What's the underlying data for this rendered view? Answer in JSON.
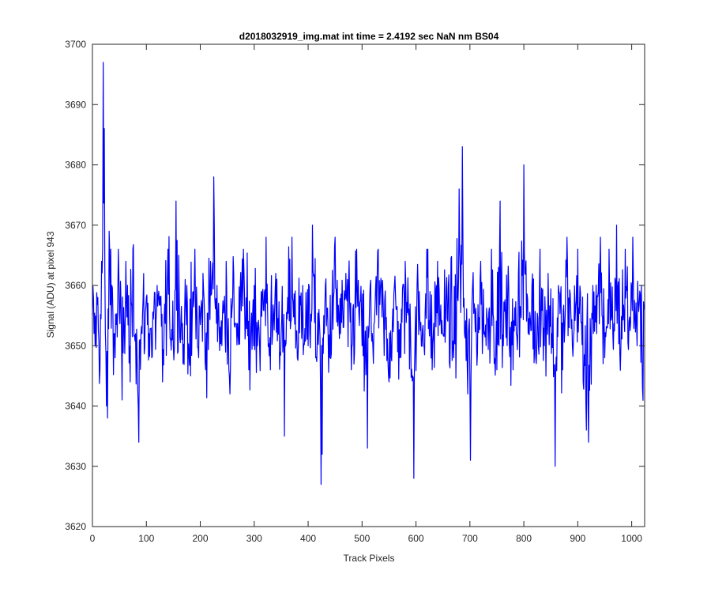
{
  "chart_data": {
    "type": "line",
    "title": "d2018032919_img.mat int time = 2.4192 sec  NaN nm BS04",
    "xlabel": "Track Pixels",
    "ylabel": "Signal (ADU) at pixel 943",
    "xlim": [
      0,
      1024
    ],
    "ylim": [
      3620,
      3700
    ],
    "xticks": [
      0,
      100,
      200,
      300,
      400,
      500,
      600,
      700,
      800,
      900,
      1000
    ],
    "yticks": [
      3620,
      3630,
      3640,
      3650,
      3660,
      3670,
      3680,
      3690,
      3700
    ],
    "grid": false,
    "series": [
      {
        "color": "#0000ff",
        "noise": {
          "n_points": 1024,
          "mean": 3654,
          "min": 3627,
          "max": 3697
        },
        "points": [
          [
            0,
            3655
          ],
          [
            5,
            3650
          ],
          [
            10,
            3658
          ],
          [
            14,
            3646
          ],
          [
            17,
            3664
          ],
          [
            20,
            3697
          ],
          [
            22,
            3686
          ],
          [
            24,
            3652
          ],
          [
            26,
            3640
          ],
          [
            28,
            3638
          ],
          [
            31,
            3669
          ],
          [
            34,
            3666
          ],
          [
            36,
            3660
          ],
          [
            42,
            3648
          ],
          [
            48,
            3666
          ],
          [
            55,
            3641
          ],
          [
            62,
            3664
          ],
          [
            70,
            3644
          ],
          [
            75,
            3666
          ],
          [
            80,
            3652
          ],
          [
            86,
            3634
          ],
          [
            92,
            3652
          ],
          [
            100,
            3658
          ],
          [
            110,
            3648
          ],
          [
            120,
            3660
          ],
          [
            130,
            3644
          ],
          [
            140,
            3666
          ],
          [
            150,
            3650
          ],
          [
            155,
            3674
          ],
          [
            160,
            3665
          ],
          [
            168,
            3647
          ],
          [
            175,
            3660
          ],
          [
            182,
            3645
          ],
          [
            190,
            3666
          ],
          [
            197,
            3648
          ],
          [
            205,
            3662
          ],
          [
            210,
            3646
          ],
          [
            219,
            3664
          ],
          [
            225,
            3678
          ],
          [
            231,
            3660
          ],
          [
            240,
            3650
          ],
          [
            248,
            3664
          ],
          [
            255,
            3642
          ],
          [
            262,
            3662
          ],
          [
            270,
            3652
          ],
          [
            280,
            3666
          ],
          [
            290,
            3646
          ],
          [
            300,
            3660
          ],
          [
            310,
            3650
          ],
          [
            322,
            3668
          ],
          [
            330,
            3646
          ],
          [
            340,
            3662
          ],
          [
            350,
            3652
          ],
          [
            356,
            3635
          ],
          [
            362,
            3658
          ],
          [
            370,
            3668
          ],
          [
            380,
            3648
          ],
          [
            390,
            3660
          ],
          [
            400,
            3650
          ],
          [
            408,
            3670
          ],
          [
            414,
            3648
          ],
          [
            420,
            3656
          ],
          [
            424,
            3627
          ],
          [
            426,
            3632
          ],
          [
            432,
            3660
          ],
          [
            440,
            3648
          ],
          [
            450,
            3668
          ],
          [
            460,
            3652
          ],
          [
            470,
            3662
          ],
          [
            480,
            3646
          ],
          [
            490,
            3666
          ],
          [
            500,
            3650
          ],
          [
            510,
            3633
          ],
          [
            515,
            3660
          ],
          [
            520,
            3650
          ],
          [
            530,
            3666
          ],
          [
            540,
            3654
          ],
          [
            550,
            3644
          ],
          [
            560,
            3660
          ],
          [
            570,
            3648
          ],
          [
            580,
            3664
          ],
          [
            590,
            3652
          ],
          [
            596,
            3628
          ],
          [
            602,
            3660
          ],
          [
            610,
            3650
          ],
          [
            620,
            3666
          ],
          [
            630,
            3646
          ],
          [
            640,
            3664
          ],
          [
            650,
            3652
          ],
          [
            660,
            3660
          ],
          [
            670,
            3648
          ],
          [
            680,
            3676
          ],
          [
            686,
            3683
          ],
          [
            690,
            3652
          ],
          [
            696,
            3642
          ],
          [
            701,
            3631
          ],
          [
            705,
            3660
          ],
          [
            712,
            3652
          ],
          [
            720,
            3664
          ],
          [
            730,
            3650
          ],
          [
            740,
            3666
          ],
          [
            750,
            3646
          ],
          [
            756,
            3674
          ],
          [
            762,
            3650
          ],
          [
            770,
            3658
          ],
          [
            780,
            3646
          ],
          [
            790,
            3662
          ],
          [
            800,
            3680
          ],
          [
            808,
            3652
          ],
          [
            815,
            3660
          ],
          [
            822,
            3648
          ],
          [
            830,
            3666
          ],
          [
            838,
            3650
          ],
          [
            845,
            3662
          ],
          [
            852,
            3652
          ],
          [
            858,
            3630
          ],
          [
            864,
            3660
          ],
          [
            872,
            3646
          ],
          [
            880,
            3668
          ],
          [
            890,
            3650
          ],
          [
            900,
            3666
          ],
          [
            910,
            3644
          ],
          [
            916,
            3636
          ],
          [
            920,
            3634
          ],
          [
            928,
            3660
          ],
          [
            935,
            3652
          ],
          [
            942,
            3668
          ],
          [
            950,
            3648
          ],
          [
            958,
            3666
          ],
          [
            965,
            3652
          ],
          [
            972,
            3670
          ],
          [
            980,
            3650
          ],
          [
            988,
            3666
          ],
          [
            995,
            3654
          ],
          [
            1002,
            3668
          ],
          [
            1010,
            3650
          ],
          [
            1018,
            3660
          ],
          [
            1020,
            3643
          ],
          [
            1023,
            3656
          ]
        ]
      }
    ]
  }
}
